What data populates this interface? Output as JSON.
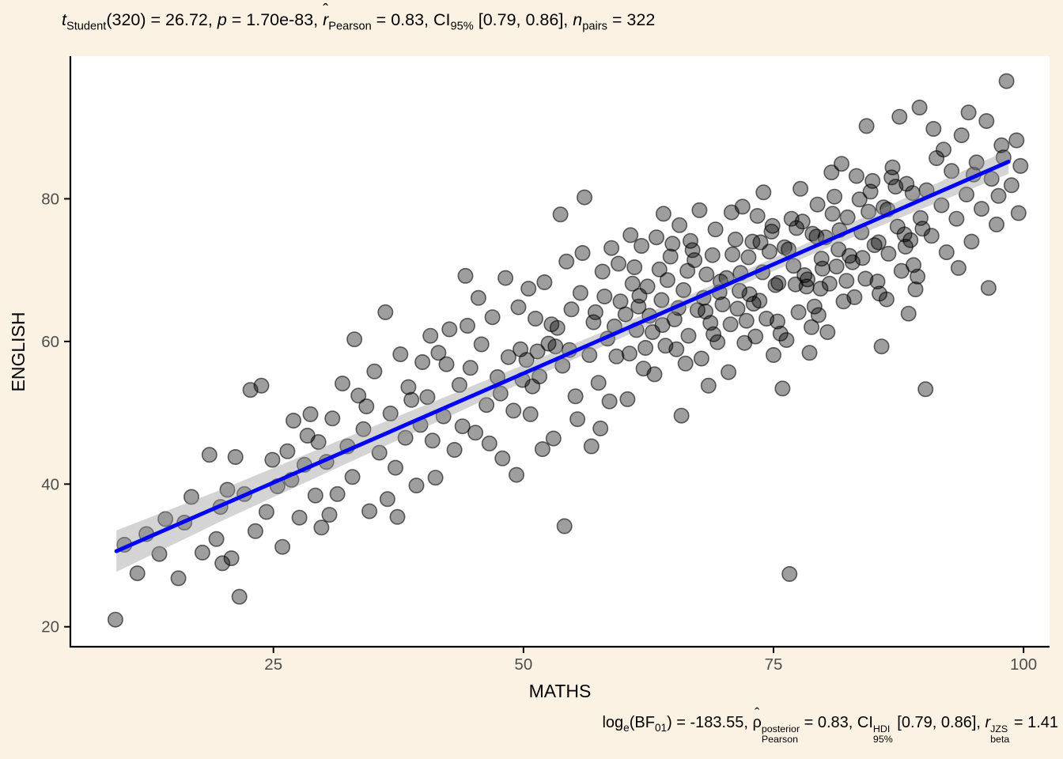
{
  "stats_title": {
    "segments": [
      {
        "t": "t",
        "i": 1
      },
      {
        "sub": "Student"
      },
      {
        "t": "(320) = 26.72, "
      },
      {
        "t": "p",
        "i": 1
      },
      {
        "t": " = 1.70e-83, "
      },
      {
        "t": "r",
        "i": 1,
        "hat": 1
      },
      {
        "sub": "Pearson"
      },
      {
        "t": " = 0.83, CI"
      },
      {
        "sub": "95%"
      },
      {
        "t": " [0.79, 0.86], "
      },
      {
        "t": "n",
        "i": 1
      },
      {
        "sub": "pairs"
      },
      {
        "t": " = 322"
      }
    ]
  },
  "stats_caption": {
    "segments": [
      {
        "t": "log"
      },
      {
        "sub": "e"
      },
      {
        "t": "(BF"
      },
      {
        "sub": "01"
      },
      {
        "t": ") = -183.55, "
      },
      {
        "t": "ρ",
        "hat": 1
      },
      {
        "sup": "posterior",
        "sub": "Pearson"
      },
      {
        "t": " = 0.83, CI"
      },
      {
        "sup": "HDI",
        "sub": "95%"
      },
      {
        "t": " [0.79, 0.86], "
      },
      {
        "t": "r",
        "i": 1
      },
      {
        "sup": "JZS",
        "sub": "beta"
      },
      {
        "t": " = 1.41"
      }
    ]
  },
  "colors": {
    "background": "#FCF2E3",
    "panel": "#FFFFFF",
    "axis_line": "#000000",
    "tick_label": "#4D4D4D",
    "axis_title": "#000000",
    "point_fill": "#000000",
    "point_fill_opacity": 0.38,
    "point_stroke": "#000000",
    "point_stroke_opacity": 0.58,
    "regression_line": "#0101FA",
    "ci_band": "#999999",
    "ci_band_opacity": 0.42
  },
  "chart_data": {
    "type": "scatter",
    "xlabel": "MATHS",
    "ylabel": "ENGLISH",
    "x_ticks": [
      25,
      50,
      75,
      100
    ],
    "y_ticks": [
      20,
      40,
      60,
      80
    ],
    "x_range": [
      4.7,
      102.6
    ],
    "y_range": [
      17.2,
      100.0
    ],
    "n_points": 322,
    "point_radius": 9.2,
    "regression_line": {
      "x1": 9.3,
      "y1": 30.6,
      "x2": 98.5,
      "y2": 85.2,
      "stroke_width": 5
    },
    "ci_band": [
      {
        "x": 9.3,
        "lo": 27.7,
        "hi": 33.5
      },
      {
        "x": 20,
        "lo": 34.95,
        "hi": 39.35
      },
      {
        "x": 35,
        "lo": 44.6,
        "hi": 48.1
      },
      {
        "x": 50,
        "lo": 54.3,
        "hi": 56.7
      },
      {
        "x": 65,
        "lo": 63.8,
        "hi": 65.5
      },
      {
        "x": 80,
        "lo": 72.9,
        "hi": 74.8
      },
      {
        "x": 90,
        "lo": 78.7,
        "hi": 81.3
      },
      {
        "x": 98.5,
        "lo": 83.5,
        "hi": 86.9
      }
    ],
    "points": [
      [
        9.2,
        21
      ],
      [
        10.1,
        31.5
      ],
      [
        11.4,
        27.5
      ],
      [
        12.3,
        33
      ],
      [
        13.6,
        30.2
      ],
      [
        14.2,
        35.1
      ],
      [
        15.5,
        26.8
      ],
      [
        16.1,
        34.6
      ],
      [
        16.8,
        38.2
      ],
      [
        17.9,
        30.4
      ],
      [
        18.6,
        44.1
      ],
      [
        19.3,
        32.3
      ],
      [
        19.7,
        36.8
      ],
      [
        19.9,
        28.9
      ],
      [
        20.4,
        39.2
      ],
      [
        20.8,
        29.6
      ],
      [
        21.2,
        43.8
      ],
      [
        21.6,
        24.2
      ],
      [
        22.1,
        38.6
      ],
      [
        22.7,
        53.2
      ],
      [
        23.2,
        33.4
      ],
      [
        23.8,
        53.8
      ],
      [
        24.3,
        36.1
      ],
      [
        24.9,
        43.4
      ],
      [
        25.4,
        39.7
      ],
      [
        25.9,
        31.2
      ],
      [
        26.4,
        44.6
      ],
      [
        26.8,
        40.6
      ],
      [
        27,
        48.9
      ],
      [
        27.6,
        35.3
      ],
      [
        28.1,
        42.7
      ],
      [
        28.4,
        46.8
      ],
      [
        28.7,
        49.8
      ],
      [
        29.2,
        38.4
      ],
      [
        29.5,
        45.9
      ],
      [
        29.8,
        33.9
      ],
      [
        30.3,
        43.1
      ],
      [
        30.6,
        35.7
      ],
      [
        30.9,
        49.2
      ],
      [
        31.4,
        38.6
      ],
      [
        31.9,
        54.1
      ],
      [
        32.4,
        45.3
      ],
      [
        32.9,
        41
      ],
      [
        33.1,
        60.3
      ],
      [
        33.5,
        52.4
      ],
      [
        34,
        47.7
      ],
      [
        34.3,
        50.9
      ],
      [
        34.6,
        36.2
      ],
      [
        35.1,
        55.8
      ],
      [
        35.6,
        44.4
      ],
      [
        36.2,
        64.1
      ],
      [
        36.4,
        37.9
      ],
      [
        36.7,
        49.9
      ],
      [
        37.2,
        42.3
      ],
      [
        37.4,
        35.4
      ],
      [
        37.7,
        58.2
      ],
      [
        38.2,
        46.5
      ],
      [
        38.5,
        53.6
      ],
      [
        38.8,
        51.8
      ],
      [
        39.3,
        39.8
      ],
      [
        39.7,
        48.3
      ],
      [
        39.9,
        57.1
      ],
      [
        40.4,
        52.2
      ],
      [
        40.7,
        60.8
      ],
      [
        40.9,
        46.1
      ],
      [
        41.2,
        40.9
      ],
      [
        41.5,
        58.4
      ],
      [
        42,
        49.5
      ],
      [
        42.3,
        56.8
      ],
      [
        42.6,
        61.7
      ],
      [
        43.1,
        44.8
      ],
      [
        43.6,
        53.9
      ],
      [
        43.9,
        48.1
      ],
      [
        44.2,
        69.2
      ],
      [
        44.4,
        62.2
      ],
      [
        44.7,
        56.3
      ],
      [
        45.2,
        47.2
      ],
      [
        45.5,
        66.1
      ],
      [
        45.8,
        59.6
      ],
      [
        46.3,
        51.1
      ],
      [
        46.6,
        45.7
      ],
      [
        46.9,
        63.4
      ],
      [
        47.4,
        55
      ],
      [
        47.7,
        52.7
      ],
      [
        47.9,
        43.6
      ],
      [
        48.2,
        68.9
      ],
      [
        48.5,
        57.8
      ],
      [
        49,
        50.3
      ],
      [
        49.3,
        41.3
      ],
      [
        49.5,
        64.8
      ],
      [
        49.7,
        58.9
      ],
      [
        49.9,
        54.6
      ],
      [
        50.3,
        57.4
      ],
      [
        50.5,
        67.4
      ],
      [
        50.7,
        49.8
      ],
      [
        50.9,
        53.7
      ],
      [
        51.2,
        63.2
      ],
      [
        51.4,
        58.6
      ],
      [
        51.6,
        55.1
      ],
      [
        51.9,
        44.9
      ],
      [
        52.1,
        68.3
      ],
      [
        52.5,
        59.7
      ],
      [
        52.8,
        62.4
      ],
      [
        53,
        46.4
      ],
      [
        53.2,
        59.3
      ],
      [
        53.4,
        61.9
      ],
      [
        53.7,
        77.8
      ],
      [
        53.9,
        56.6
      ],
      [
        54.1,
        34.1
      ],
      [
        54.3,
        71.2
      ],
      [
        54.6,
        58.8
      ],
      [
        54.8,
        64.5
      ],
      [
        55.2,
        52.3
      ],
      [
        55.4,
        49.1
      ],
      [
        55.7,
        66.8
      ],
      [
        55.9,
        72.4
      ],
      [
        56.1,
        80.2
      ],
      [
        56.6,
        58.1
      ],
      [
        56.8,
        45.3
      ],
      [
        57,
        62.7
      ],
      [
        57.2,
        64.1
      ],
      [
        57.5,
        54.2
      ],
      [
        57.7,
        47.8
      ],
      [
        57.9,
        69.8
      ],
      [
        58.1,
        66.3
      ],
      [
        58.4,
        60.4
      ],
      [
        58.6,
        51.6
      ],
      [
        58.8,
        73.1
      ],
      [
        59.1,
        62.1
      ],
      [
        59.3,
        57.9
      ],
      [
        59.5,
        70.9
      ],
      [
        59.7,
        65.6
      ],
      [
        60.2,
        63.8
      ],
      [
        60.4,
        51.9
      ],
      [
        60.6,
        58.3
      ],
      [
        60.7,
        74.9
      ],
      [
        60.9,
        68.1
      ],
      [
        61.1,
        70.4
      ],
      [
        61.3,
        61.6
      ],
      [
        61.5,
        64.9
      ],
      [
        61.6,
        66.4
      ],
      [
        61.8,
        73.4
      ],
      [
        62,
        56.2
      ],
      [
        62.2,
        59.1
      ],
      [
        62.4,
        67.7
      ],
      [
        62.6,
        63.6
      ],
      [
        62.9,
        61.3
      ],
      [
        63.1,
        55.4
      ],
      [
        63.3,
        74.6
      ],
      [
        63.6,
        70.1
      ],
      [
        63.8,
        65.8
      ],
      [
        63.9,
        62.3
      ],
      [
        64,
        77.9
      ],
      [
        64.2,
        59.4
      ],
      [
        64.4,
        68.6
      ],
      [
        64.7,
        71.9
      ],
      [
        64.9,
        73.7
      ],
      [
        65.1,
        63.1
      ],
      [
        65.3,
        58.9
      ],
      [
        65.5,
        64.7
      ],
      [
        65.6,
        76.3
      ],
      [
        65.8,
        49.6
      ],
      [
        66,
        67.2
      ],
      [
        66.2,
        56.9
      ],
      [
        66.4,
        69.9
      ],
      [
        66.5,
        60.8
      ],
      [
        66.7,
        74.1
      ],
      [
        66.9,
        72.8
      ],
      [
        67.1,
        71.4
      ],
      [
        67.4,
        64.4
      ],
      [
        67.6,
        78.4
      ],
      [
        67.8,
        57.6
      ],
      [
        68,
        66.1
      ],
      [
        68.2,
        64.2
      ],
      [
        68.3,
        69.4
      ],
      [
        68.5,
        53.8
      ],
      [
        68.7,
        62.6
      ],
      [
        68.9,
        72.1
      ],
      [
        69,
        61
      ],
      [
        69.2,
        75.7
      ],
      [
        69.4,
        59.9
      ],
      [
        69.6,
        66.9
      ],
      [
        69.7,
        68.4
      ],
      [
        69.9,
        65.2
      ],
      [
        70.3,
        68.9
      ],
      [
        70.5,
        55.7
      ],
      [
        70.7,
        62.4
      ],
      [
        70.8,
        78.1
      ],
      [
        70.9,
        72.2
      ],
      [
        71.2,
        74.3
      ],
      [
        71.4,
        64.6
      ],
      [
        71.6,
        67.1
      ],
      [
        71.7,
        69.6
      ],
      [
        71.9,
        78.9
      ],
      [
        72.1,
        59.8
      ],
      [
        72.3,
        62.9
      ],
      [
        72.5,
        71.8
      ],
      [
        72.6,
        66.6
      ],
      [
        72.9,
        74
      ],
      [
        73,
        65.3
      ],
      [
        73.2,
        60.7
      ],
      [
        73.4,
        77.6
      ],
      [
        73.6,
        65.7
      ],
      [
        73.7,
        73.9
      ],
      [
        73.9,
        69.7
      ],
      [
        74,
        80.9
      ],
      [
        74.3,
        63.2
      ],
      [
        74.6,
        72.6
      ],
      [
        74.8,
        75.4
      ],
      [
        74.9,
        76.2
      ],
      [
        75,
        58.1
      ],
      [
        75.2,
        67.9
      ],
      [
        75.4,
        62.8
      ],
      [
        75.5,
        68.2
      ],
      [
        75.7,
        61.1
      ],
      [
        75.9,
        53.4
      ],
      [
        76.1,
        73.2
      ],
      [
        76.3,
        60.2
      ],
      [
        76.5,
        72.9
      ],
      [
        76.6,
        27.4
      ],
      [
        76.8,
        77.2
      ],
      [
        77,
        70.6
      ],
      [
        77.2,
        68
      ],
      [
        77.3,
        75.9
      ],
      [
        77.5,
        64.1
      ],
      [
        77.7,
        81.4
      ],
      [
        77.9,
        76.8
      ],
      [
        78.1,
        69.3
      ],
      [
        78.3,
        67.7
      ],
      [
        78.4,
        68.7
      ],
      [
        78.6,
        58.4
      ],
      [
        78.8,
        62
      ],
      [
        78.9,
        75.1
      ],
      [
        79.1,
        64.9
      ],
      [
        79.3,
        74.7
      ],
      [
        79.4,
        79.2
      ],
      [
        79.5,
        63.7
      ],
      [
        79.7,
        67.4
      ],
      [
        79.8,
        71.6
      ],
      [
        79.9,
        70.2
      ],
      [
        80.2,
        74.6
      ],
      [
        80.4,
        61.3
      ],
      [
        80.6,
        68.1
      ],
      [
        80.8,
        83.7
      ],
      [
        80.9,
        77.9
      ],
      [
        81.1,
        80.3
      ],
      [
        81.3,
        70.5
      ],
      [
        81.5,
        72.9
      ],
      [
        81.6,
        75.6
      ],
      [
        81.8,
        84.9
      ],
      [
        82,
        65.6
      ],
      [
        82.3,
        68.5
      ],
      [
        82.4,
        77.4
      ],
      [
        82.6,
        72
      ],
      [
        82.9,
        71.1
      ],
      [
        83.1,
        66.2
      ],
      [
        83.3,
        83.2
      ],
      [
        83.6,
        79.9
      ],
      [
        83.8,
        75.3
      ],
      [
        83.9,
        71.7
      ],
      [
        84.2,
        68.8
      ],
      [
        84.3,
        90.2
      ],
      [
        84.5,
        78.2
      ],
      [
        84.7,
        81
      ],
      [
        84.9,
        82.5
      ],
      [
        85.1,
        73.5
      ],
      [
        85.4,
        68.4
      ],
      [
        85.5,
        73.9
      ],
      [
        85.6,
        66.7
      ],
      [
        85.8,
        59.3
      ],
      [
        86,
        78.8
      ],
      [
        86.3,
        65.9
      ],
      [
        86.4,
        78.5
      ],
      [
        86.5,
        72.3
      ],
      [
        86.8,
        83
      ],
      [
        86.9,
        84.4
      ],
      [
        87.2,
        81.7
      ],
      [
        87.4,
        76.1
      ],
      [
        87.6,
        91.5
      ],
      [
        87.8,
        69.9
      ],
      [
        88.1,
        75
      ],
      [
        88.2,
        73.3
      ],
      [
        88.3,
        82.1
      ],
      [
        88.5,
        63.9
      ],
      [
        88.7,
        74.2
      ],
      [
        88.9,
        80.8
      ],
      [
        89,
        70.7
      ],
      [
        89.2,
        67.3
      ],
      [
        89.4,
        69.1
      ],
      [
        89.6,
        92.8
      ],
      [
        89.7,
        77.3
      ],
      [
        89.9,
        75.8
      ],
      [
        90.2,
        53.3
      ],
      [
        90.3,
        81.2
      ],
      [
        90.8,
        74.8
      ],
      [
        91,
        89.8
      ],
      [
        91.3,
        85.7
      ],
      [
        91.8,
        79.1
      ],
      [
        92,
        86.9
      ],
      [
        92.3,
        72.5
      ],
      [
        92.8,
        83.9
      ],
      [
        93.3,
        77.2
      ],
      [
        93.5,
        70.3
      ],
      [
        93.8,
        88.9
      ],
      [
        94.3,
        80.6
      ],
      [
        94.5,
        92.1
      ],
      [
        94.8,
        74
      ],
      [
        95,
        83.4
      ],
      [
        95.3,
        85.1
      ],
      [
        95.8,
        78.6
      ],
      [
        96.3,
        90.9
      ],
      [
        96.5,
        67.5
      ],
      [
        96.8,
        82.8
      ],
      [
        97.3,
        76.4
      ],
      [
        97.5,
        80.4
      ],
      [
        97.8,
        87.5
      ],
      [
        98,
        85.8
      ],
      [
        98.3,
        96.5
      ],
      [
        98.8,
        81.9
      ],
      [
        99.3,
        88.2
      ],
      [
        99.5,
        78
      ],
      [
        99.7,
        84.6
      ]
    ]
  }
}
